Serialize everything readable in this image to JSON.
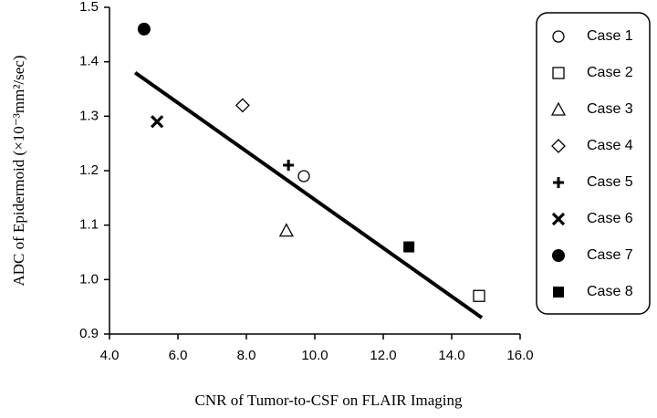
{
  "chart_data": {
    "type": "scatter",
    "x_label": "CNR of Tumor-to-CSF on FLAIR Imaging",
    "y_label": "ADC of Epidermoid (×10⁻³mm²/sec)",
    "xlim": [
      4,
      16
    ],
    "xticks": [
      {
        "value": 4,
        "label": "4.0"
      },
      {
        "value": 6,
        "label": "6.0"
      },
      {
        "value": 8,
        "label": "8.0"
      },
      {
        "value": 10,
        "label": "10.0"
      },
      {
        "value": 12,
        "label": "12.0"
      },
      {
        "value": 14,
        "label": "14.0"
      },
      {
        "value": 16,
        "label": "16.0"
      }
    ],
    "ylim": [
      0.9,
      1.5
    ],
    "yticks": [
      0.9,
      {
        "value": 1,
        "label": "1.0"
      },
      1.1,
      1.2,
      1.3,
      1.4,
      1.5
    ],
    "series": [
      {
        "name": "Case 1",
        "marker": "circle-open",
        "color": "#000000",
        "x": [
          9.68
        ],
        "values": [
          1.19
        ]
      },
      {
        "name": "Case 2",
        "marker": "square-open",
        "color": "#000000",
        "x": [
          14.8
        ],
        "values": [
          0.97
        ]
      },
      {
        "name": "Case 3",
        "marker": "triangle-open",
        "color": "#000000",
        "x": [
          9.17
        ],
        "values": [
          1.09
        ]
      },
      {
        "name": "Case 4",
        "marker": "diamond-open",
        "color": "#000000",
        "x": [
          7.89
        ],
        "values": [
          1.32
        ]
      },
      {
        "name": "Case 5",
        "marker": "plus",
        "color": "#000000",
        "x": [
          9.23
        ],
        "values": [
          1.21
        ]
      },
      {
        "name": "Case 6",
        "marker": "cross",
        "color": "#000000",
        "x": [
          5.39
        ],
        "values": [
          1.29
        ]
      },
      {
        "name": "Case 7",
        "marker": "circle-filled",
        "color": "#000000",
        "x": [
          5.01
        ],
        "values": [
          1.46
        ]
      },
      {
        "name": "Case 8",
        "marker": "square-filled",
        "color": "#000000",
        "x": [
          12.75
        ],
        "values": [
          1.06
        ]
      }
    ],
    "trendline": {
      "color": "#000000",
      "x": [
        4.75,
        14.88
      ],
      "values": [
        1.38,
        0.93
      ]
    },
    "legend": "right"
  }
}
